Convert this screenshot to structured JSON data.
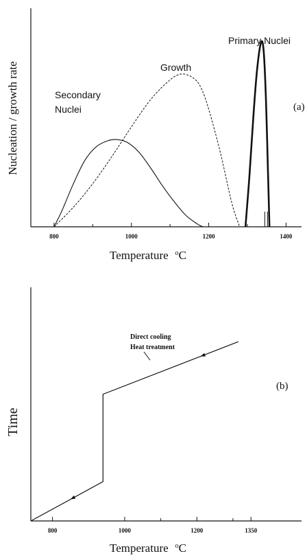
{
  "chart_data": [
    {
      "type": "line",
      "panel_label": "(a)",
      "xlabel": "Temperature",
      "xlabel_unit": "oC",
      "ylabel": "Nucleation / growth rate",
      "xlim": [
        740,
        1440
      ],
      "ylim": [
        0,
        1
      ],
      "x_ticks": [
        800,
        1000,
        1200,
        1400
      ],
      "x_ticklabels": [
        "800",
        "1000",
        "1200",
        "1400"
      ],
      "series": [
        {
          "name": "Secondary Nuclei",
          "style": "solid",
          "x": [
            800,
            820,
            850,
            880,
            910,
            940,
            965,
            990,
            1020,
            1050,
            1080,
            1110,
            1140,
            1170,
            1185
          ],
          "y": [
            0,
            0.08,
            0.22,
            0.34,
            0.41,
            0.44,
            0.445,
            0.43,
            0.38,
            0.3,
            0.21,
            0.13,
            0.06,
            0.015,
            0
          ]
        },
        {
          "name": "Growth",
          "style": "dashed",
          "x": [
            800,
            850,
            900,
            950,
            1000,
            1050,
            1100,
            1130,
            1160,
            1180,
            1200,
            1230,
            1260,
            1280
          ],
          "y": [
            0,
            0.1,
            0.22,
            0.36,
            0.51,
            0.65,
            0.75,
            0.78,
            0.76,
            0.71,
            0.6,
            0.38,
            0.12,
            0
          ]
        },
        {
          "name": "Primary Nuclei",
          "style": "solid-bold",
          "x": [
            1295,
            1305,
            1315,
            1325,
            1335,
            1342,
            1348,
            1353,
            1357
          ],
          "y": [
            0,
            0.25,
            0.55,
            0.8,
            0.94,
            0.9,
            0.65,
            0.3,
            0
          ]
        }
      ],
      "annotations": [
        "Secondary",
        "Nuclei",
        "Growth",
        "Primary Nuclei"
      ]
    },
    {
      "type": "line",
      "panel_label": "(b)",
      "xlabel": "Temperature",
      "xlabel_unit": "oC",
      "ylabel": "Time",
      "xlim": [
        740,
        1490
      ],
      "ylim": [
        0,
        1
      ],
      "x_ticks": [
        800,
        1000,
        1200,
        1350
      ],
      "x_ticklabels": [
        "800",
        "1000",
        "1200",
        "1350"
      ],
      "series": [
        {
          "name": "Direct cooling Heat treatment",
          "style": "solid",
          "x": [
            740,
            940,
            940,
            1315
          ],
          "y": [
            0,
            0.18,
            0.58,
            0.82
          ]
        }
      ],
      "annotations": [
        "Direct cooling",
        "Heat treatment"
      ]
    }
  ]
}
